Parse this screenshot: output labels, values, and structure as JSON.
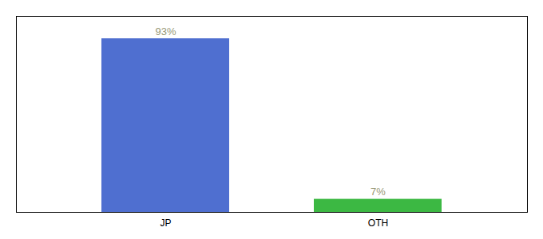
{
  "chart_data": {
    "type": "bar",
    "categories": [
      "JP",
      "OTH"
    ],
    "values": [
      93,
      7
    ],
    "value_labels": [
      "93%",
      "7%"
    ],
    "colors": [
      "#4f6fd0",
      "#3cb843"
    ],
    "ylim": [
      0,
      105
    ],
    "data_labels": true,
    "tick_labels": "x"
  }
}
